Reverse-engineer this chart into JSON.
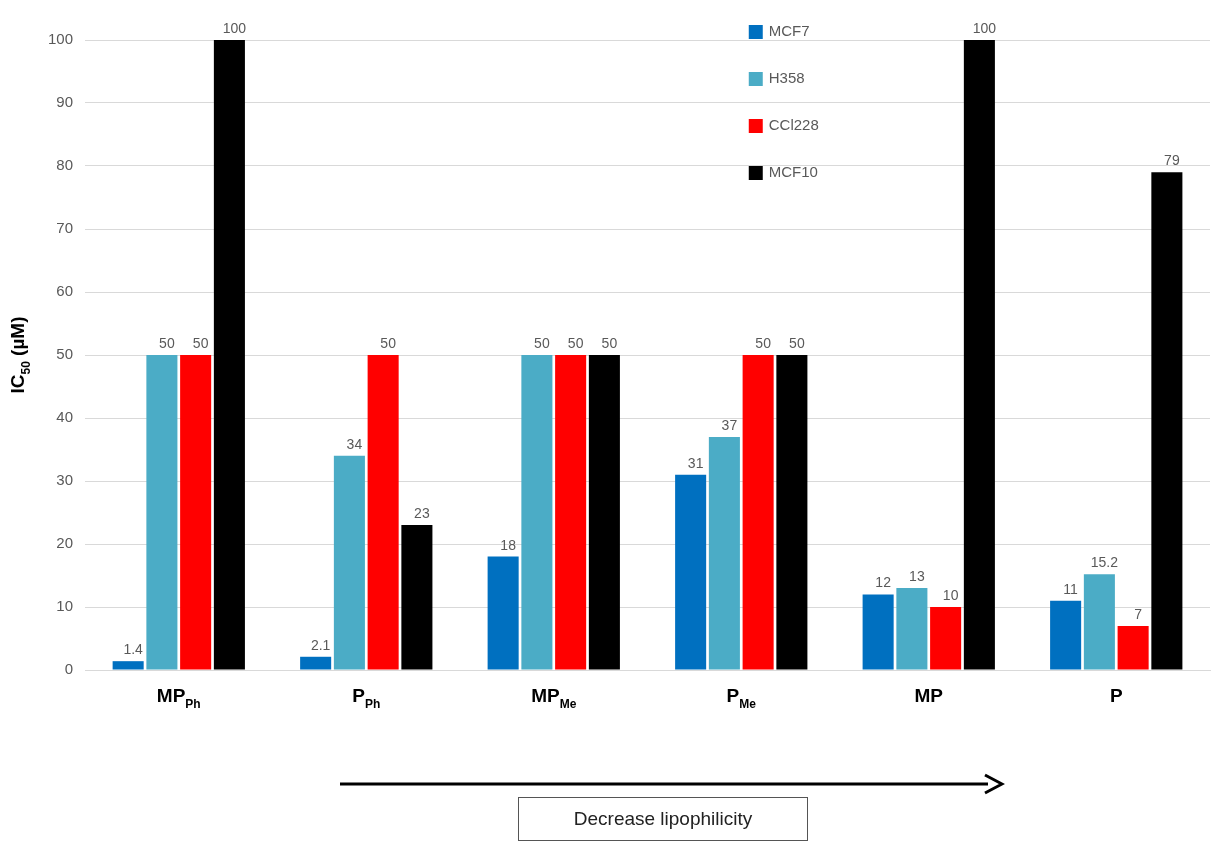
{
  "chart_data": {
    "type": "bar",
    "ylabel": "IC$_{50}$ (µM)",
    "categories": [
      "MP$_{Ph}$",
      "P$_{Ph}$",
      "MP$_{Me}$",
      "P$_{Me}$",
      "MP",
      "P"
    ],
    "series": [
      {
        "name": "MCF7",
        "color": "#0070c0",
        "values": [
          1.4,
          2.1,
          18,
          31,
          12,
          11
        ]
      },
      {
        "name": "H358",
        "color": "#4bacc6",
        "values": [
          50,
          34,
          50,
          37,
          13,
          15.2
        ]
      },
      {
        "name": "CCl228",
        "color": "#ff0000",
        "values": [
          50,
          50,
          50,
          50,
          10,
          7
        ]
      },
      {
        "name": "MCF10",
        "color": "#000000",
        "values": [
          100,
          23,
          50,
          50,
          100,
          79
        ]
      }
    ],
    "ylim": [
      0,
      100
    ],
    "yticks": [
      0,
      10,
      20,
      30,
      40,
      50,
      60,
      70,
      80,
      90,
      100
    ],
    "grid": "y",
    "legend": "top right",
    "data_labels": true,
    "annotations": [
      "Decrease lipophilicity"
    ]
  }
}
